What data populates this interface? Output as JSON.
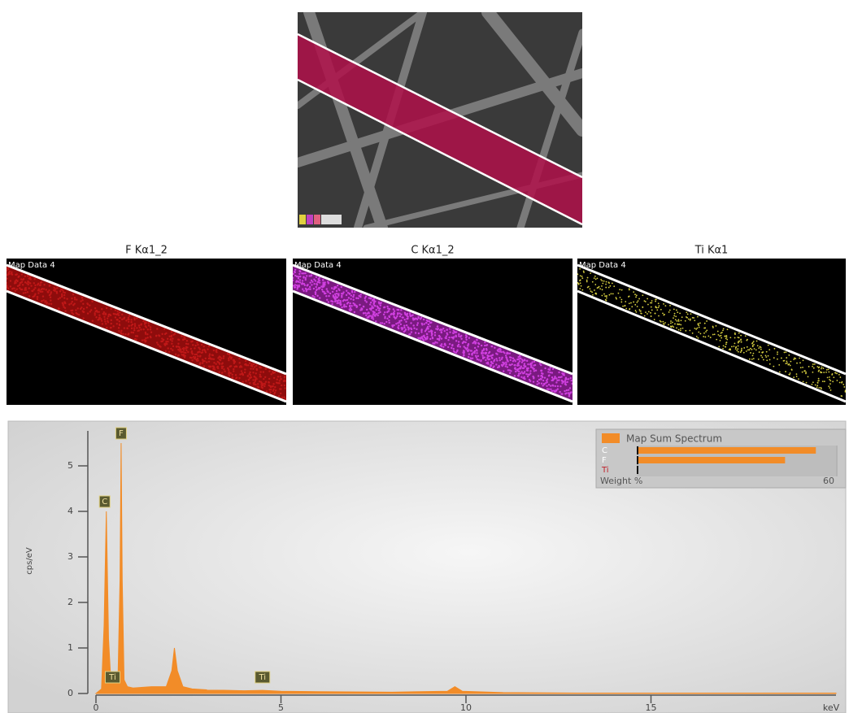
{
  "maps": [
    {
      "title": "F Kα1_2",
      "label": "Map Data 4"
    },
    {
      "title": "C Kα1_2",
      "label": "Map Data 4"
    },
    {
      "title": "Ti Kα1",
      "label": "Map Data 4"
    }
  ],
  "chart_data": {
    "type": "area",
    "x_label": "keV",
    "y_label": "cps/eV",
    "color": "#f28c28",
    "x": [
      0,
      0.15,
      0.22,
      0.28,
      0.34,
      0.4,
      0.45,
      0.5,
      0.6,
      0.65,
      0.68,
      0.71,
      0.76,
      0.85,
      1.0,
      1.5,
      1.9,
      2.05,
      2.12,
      2.2,
      2.35,
      2.6,
      3.0,
      4.0,
      4.5,
      5,
      6,
      8,
      9.5,
      9.7,
      9.9,
      11,
      13,
      15,
      20
    ],
    "values": [
      0,
      0.1,
      1.5,
      4.0,
      1.2,
      0.3,
      0.25,
      0.2,
      0.5,
      2.5,
      5.5,
      2.5,
      0.3,
      0.15,
      0.12,
      0.15,
      0.15,
      0.5,
      1.0,
      0.5,
      0.15,
      0.1,
      0.08,
      0.06,
      0.07,
      0.05,
      0.04,
      0.03,
      0.05,
      0.15,
      0.05,
      0.02,
      0.01,
      0.01,
      0.01
    ],
    "xlim": [
      0,
      20
    ],
    "xticks": [
      0,
      5,
      10,
      15
    ],
    "ylim": [
      0,
      5.5
    ],
    "yticks": [
      0,
      1,
      2,
      3,
      4,
      5
    ],
    "annotations": [
      {
        "label": "C",
        "x": 0.28
      },
      {
        "label": "F",
        "x": 0.68
      },
      {
        "label": "Ti",
        "x": 0.45
      },
      {
        "label": "Ti",
        "x": 4.5
      }
    ],
    "inset": {
      "title": "Map Sum Spectrum",
      "categories": [
        "C",
        "F",
        "Ti"
      ],
      "values": [
        53.5,
        44.3,
        0.4
      ],
      "label_colors": [
        "#ffffff",
        "#ffffff",
        "#c0202a"
      ],
      "x_label": "Weight %",
      "xlim": [
        0,
        60
      ],
      "xticks": [
        60
      ]
    }
  }
}
